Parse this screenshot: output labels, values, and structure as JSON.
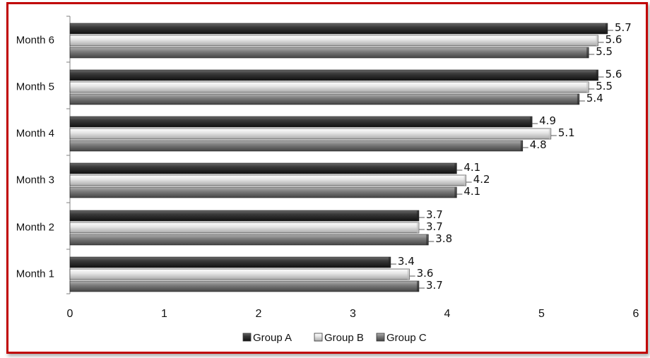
{
  "chart_data": {
    "type": "bar",
    "orientation": "horizontal",
    "categories": [
      "Month 1",
      "Month 2",
      "Month 3",
      "Month 4",
      "Month 5",
      "Month 6"
    ],
    "series": [
      {
        "name": "Group A",
        "values": [
          3.4,
          3.7,
          4.1,
          4.9,
          5.6,
          5.7
        ],
        "color": "#2b2b2b"
      },
      {
        "name": "Group B",
        "values": [
          3.6,
          3.7,
          4.2,
          5.1,
          5.5,
          5.6
        ],
        "color": "#d9d9d9"
      },
      {
        "name": "Group C",
        "values": [
          3.7,
          3.8,
          4.1,
          4.8,
          5.4,
          5.5
        ],
        "color": "#6e6e6e"
      }
    ],
    "legend_labels": [
      "Group A",
      "Group B",
      "Group C"
    ],
    "xlim": [
      0,
      6
    ],
    "xticks": [
      "0",
      "1",
      "2",
      "3",
      "4",
      "5",
      "6"
    ],
    "title": "",
    "xlabel": "",
    "ylabel": "",
    "grid": false,
    "legend_position": "bottom"
  },
  "frame_color": "#c00000"
}
